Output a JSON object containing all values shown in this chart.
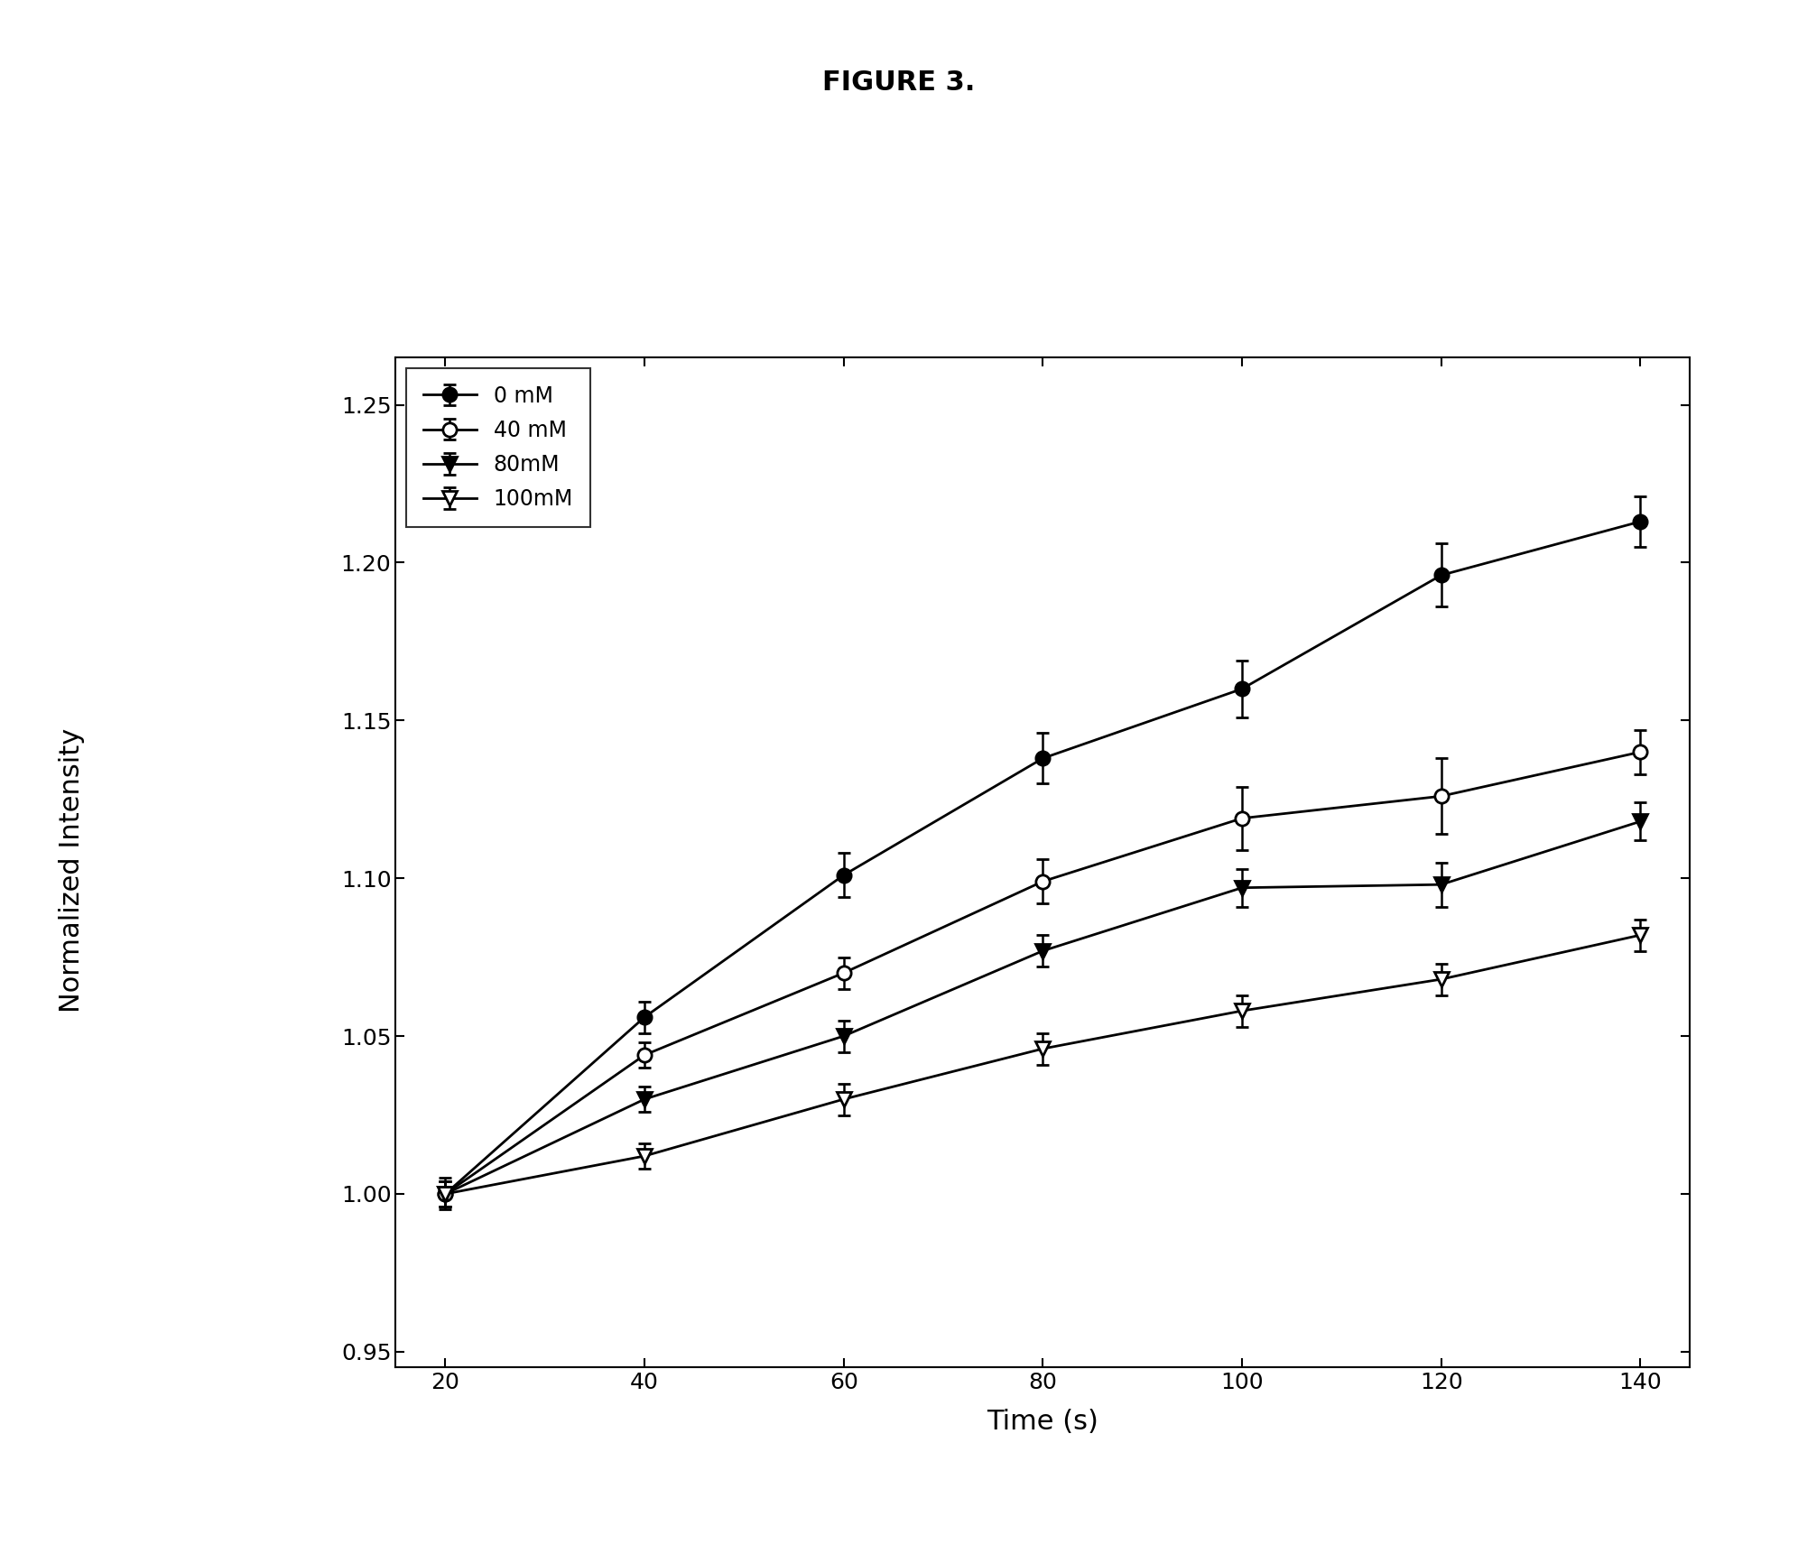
{
  "title": "FIGURE 3.",
  "xlabel": "Time (s)",
  "ylabel": "Normalized Intensity",
  "x": [
    20,
    40,
    60,
    80,
    100,
    120,
    140
  ],
  "series": [
    {
      "label": "0 mM",
      "y": [
        1.0,
        1.056,
        1.101,
        1.138,
        1.16,
        1.196,
        1.213
      ],
      "yerr": [
        0.005,
        0.005,
        0.007,
        0.008,
        0.009,
        0.01,
        0.008
      ],
      "marker": "o",
      "fillstyle": "full",
      "color": "black"
    },
    {
      "label": "40 mM",
      "y": [
        1.0,
        1.044,
        1.07,
        1.099,
        1.119,
        1.126,
        1.14
      ],
      "yerr": [
        0.004,
        0.004,
        0.005,
        0.007,
        0.01,
        0.012,
        0.007
      ],
      "marker": "o",
      "fillstyle": "none",
      "color": "black"
    },
    {
      "label": "80mM",
      "y": [
        1.0,
        1.03,
        1.05,
        1.077,
        1.097,
        1.098,
        1.118
      ],
      "yerr": [
        0.004,
        0.004,
        0.005,
        0.005,
        0.006,
        0.007,
        0.006
      ],
      "marker": "v",
      "fillstyle": "full",
      "color": "black"
    },
    {
      "label": "100mM",
      "y": [
        1.0,
        1.012,
        1.03,
        1.046,
        1.058,
        1.068,
        1.082
      ],
      "yerr": [
        0.004,
        0.004,
        0.005,
        0.005,
        0.005,
        0.005,
        0.005
      ],
      "marker": "v",
      "fillstyle": "none",
      "color": "black"
    }
  ],
  "xlim": [
    15,
    145
  ],
  "ylim": [
    0.945,
    1.265
  ],
  "xticks": [
    20,
    40,
    60,
    80,
    100,
    120,
    140
  ],
  "yticks": [
    0.95,
    1.0,
    1.05,
    1.1,
    1.15,
    1.2,
    1.25
  ],
  "background_color": "#ffffff",
  "title_fontsize": 22,
  "axis_label_fontsize": 22,
  "tick_fontsize": 18,
  "legend_fontsize": 17,
  "linewidth": 2.0,
  "markersize": 11,
  "capsize": 5,
  "fig_width": 19.92,
  "fig_height": 17.22,
  "dpi": 100
}
